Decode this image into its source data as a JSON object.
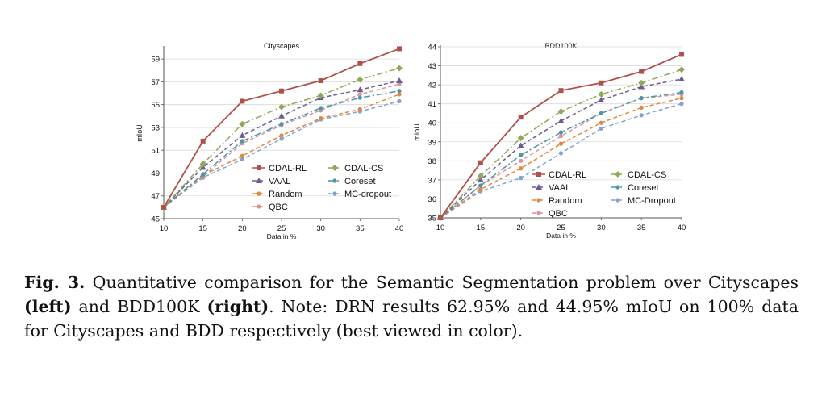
{
  "chart_data": [
    {
      "type": "line",
      "title": "Cityscapes",
      "xlabel": "Data in %",
      "ylabel": "mIoU",
      "x": [
        10,
        15,
        20,
        25,
        30,
        35,
        40
      ],
      "xticks": [
        "10",
        "15",
        "20",
        "25",
        "30",
        "35",
        "40"
      ],
      "ylim": [
        45,
        60
      ],
      "yticks": [
        "45",
        "47",
        "49",
        "51",
        "53",
        "55",
        "57",
        "59"
      ],
      "legend_position": "lower-right",
      "series": [
        {
          "name": "CDAL-RL",
          "color": "#b0504a",
          "dash": "solid",
          "marker": "square",
          "values": [
            46.0,
            51.8,
            55.3,
            56.2,
            57.1,
            58.6,
            59.9
          ]
        },
        {
          "name": "CDAL-CS",
          "color": "#8fa85a",
          "dash": "dashdot",
          "marker": "diamond",
          "values": [
            46.0,
            49.8,
            53.3,
            54.8,
            55.8,
            57.2,
            58.2
          ]
        },
        {
          "name": "VAAL",
          "color": "#6f5a93",
          "dash": "dash",
          "marker": "triangle",
          "values": [
            46.0,
            49.5,
            52.3,
            54.0,
            55.6,
            56.3,
            57.1
          ]
        },
        {
          "name": "Coreset",
          "color": "#4a97ab",
          "dash": "dashdot",
          "marker": "circle",
          "values": [
            46.0,
            48.9,
            51.8,
            53.3,
            54.7,
            55.6,
            56.2
          ]
        },
        {
          "name": "Random",
          "color": "#e2873e",
          "dash": "dash",
          "marker": "circle",
          "values": [
            46.0,
            48.8,
            50.5,
            52.3,
            53.8,
            54.6,
            55.9
          ]
        },
        {
          "name": "MC-dropout",
          "color": "#7ea3d1",
          "dash": "dash",
          "marker": "circle",
          "values": [
            46.0,
            48.6,
            50.2,
            52.0,
            53.7,
            54.4,
            55.3
          ]
        },
        {
          "name": "QBC",
          "color": "#d99598",
          "dash": "dash",
          "marker": "circle",
          "values": [
            46.0,
            48.7,
            51.6,
            53.2,
            54.5,
            55.9,
            56.8
          ]
        }
      ]
    },
    {
      "type": "line",
      "title": "BDD100K",
      "xlabel": "Data in %",
      "ylabel": "mIoU",
      "x": [
        10,
        15,
        20,
        25,
        30,
        35,
        40
      ],
      "xticks": [
        "10",
        "15",
        "20",
        "25",
        "30",
        "35",
        "40"
      ],
      "ylim": [
        35,
        44
      ],
      "yticks": [
        "35",
        "36",
        "37",
        "38",
        "39",
        "40",
        "41",
        "42",
        "43",
        "44"
      ],
      "legend_position": "lower-right",
      "series": [
        {
          "name": "CDAL-RL",
          "color": "#b0504a",
          "dash": "solid",
          "marker": "square",
          "values": [
            35.0,
            37.9,
            40.3,
            41.7,
            42.1,
            42.7,
            43.6
          ]
        },
        {
          "name": "CDAL-CS",
          "color": "#8fa85a",
          "dash": "dashdot",
          "marker": "diamond",
          "values": [
            35.0,
            37.2,
            39.2,
            40.6,
            41.5,
            42.1,
            42.8
          ]
        },
        {
          "name": "VAAL",
          "color": "#6f5a93",
          "dash": "dash",
          "marker": "triangle",
          "values": [
            35.0,
            37.0,
            38.8,
            40.1,
            41.2,
            41.9,
            42.3
          ]
        },
        {
          "name": "Coreset",
          "color": "#4a97ab",
          "dash": "dashdot",
          "marker": "circle",
          "values": [
            35.0,
            36.7,
            38.3,
            39.5,
            40.5,
            41.3,
            41.6
          ]
        },
        {
          "name": "Random",
          "color": "#e2873e",
          "dash": "dash",
          "marker": "circle",
          "values": [
            35.0,
            36.5,
            37.6,
            38.9,
            40.0,
            40.8,
            41.3
          ]
        },
        {
          "name": "MC-Dropout",
          "color": "#7ea3d1",
          "dash": "dash",
          "marker": "circle",
          "values": [
            35.0,
            36.4,
            37.1,
            38.4,
            39.7,
            40.4,
            41.0
          ]
        },
        {
          "name": "QBC",
          "color": "#d99598",
          "dash": "dash",
          "marker": "circle",
          "values": [
            35.0,
            36.7,
            38.0,
            39.3,
            40.5,
            41.3,
            41.5
          ]
        }
      ]
    }
  ],
  "caption": {
    "label": "Fig. 3.",
    "text_1": " Quantitative comparison for the Semantic Segmentation problem over Cityscapes ",
    "bold_1": "(left)",
    "text_2": " and BDD100K ",
    "bold_2": "(right)",
    "text_3": ". Note: DRN results 62.95% and 44.95% mIoU on 100% data for Cityscapes and BDD respectively (best viewed in color)."
  }
}
